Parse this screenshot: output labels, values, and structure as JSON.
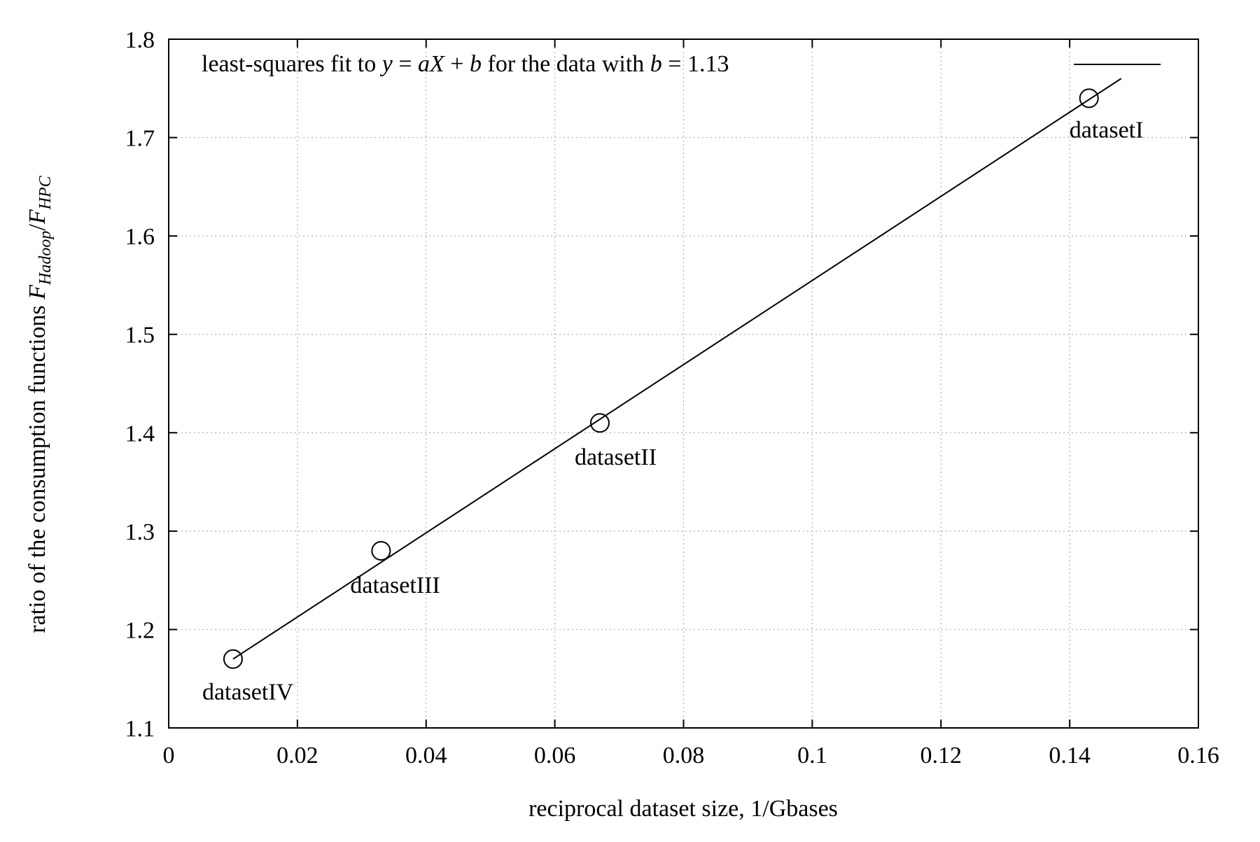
{
  "chart_data": {
    "type": "scatter",
    "xlabel": "reciprocal dataset size, 1/Gbases",
    "ylabel": {
      "prefix": "ratio of the consumption functions ",
      "f1": "F",
      "sub1": "Hadoop",
      "slash": "/",
      "f2": "F",
      "sub2": "HPC"
    },
    "xlim": [
      0,
      0.16
    ],
    "ylim": [
      1.1,
      1.8
    ],
    "x_ticks": [
      0,
      0.02,
      0.04,
      0.06,
      0.08,
      0.1,
      0.12,
      0.14,
      0.16
    ],
    "x_tick_labels": [
      "0",
      "0.02",
      "0.04",
      "0.06",
      "0.08",
      "0.1",
      "0.12",
      "0.14",
      "0.16"
    ],
    "y_ticks": [
      1.1,
      1.2,
      1.3,
      1.4,
      1.5,
      1.6,
      1.7,
      1.8
    ],
    "y_tick_labels": [
      "1.1",
      "1.2",
      "1.3",
      "1.4",
      "1.5",
      "1.6",
      "1.7",
      "1.8"
    ],
    "grid": true,
    "legend_position": "top",
    "points": [
      {
        "label": "datasetI",
        "x": 0.143,
        "y": 1.74
      },
      {
        "label": "datasetII",
        "x": 0.067,
        "y": 1.41
      },
      {
        "label": "datasetIII",
        "x": 0.033,
        "y": 1.28
      },
      {
        "label": "datasetIV",
        "x": 0.01,
        "y": 1.17
      }
    ],
    "fit_line": {
      "x": [
        0.01,
        0.148
      ],
      "y": [
        1.17,
        1.76
      ],
      "legend": {
        "t1": "least-squares fit to ",
        "m1": "y",
        "t2": " = ",
        "m2": "aX",
        "t3": " + ",
        "m3": "b",
        "t4": " for the data with ",
        "m4": "b",
        "t5": " = 1.13"
      }
    },
    "colors": {
      "line": "#000000",
      "grid": "#b0b0b0",
      "marker": "#000000"
    }
  }
}
